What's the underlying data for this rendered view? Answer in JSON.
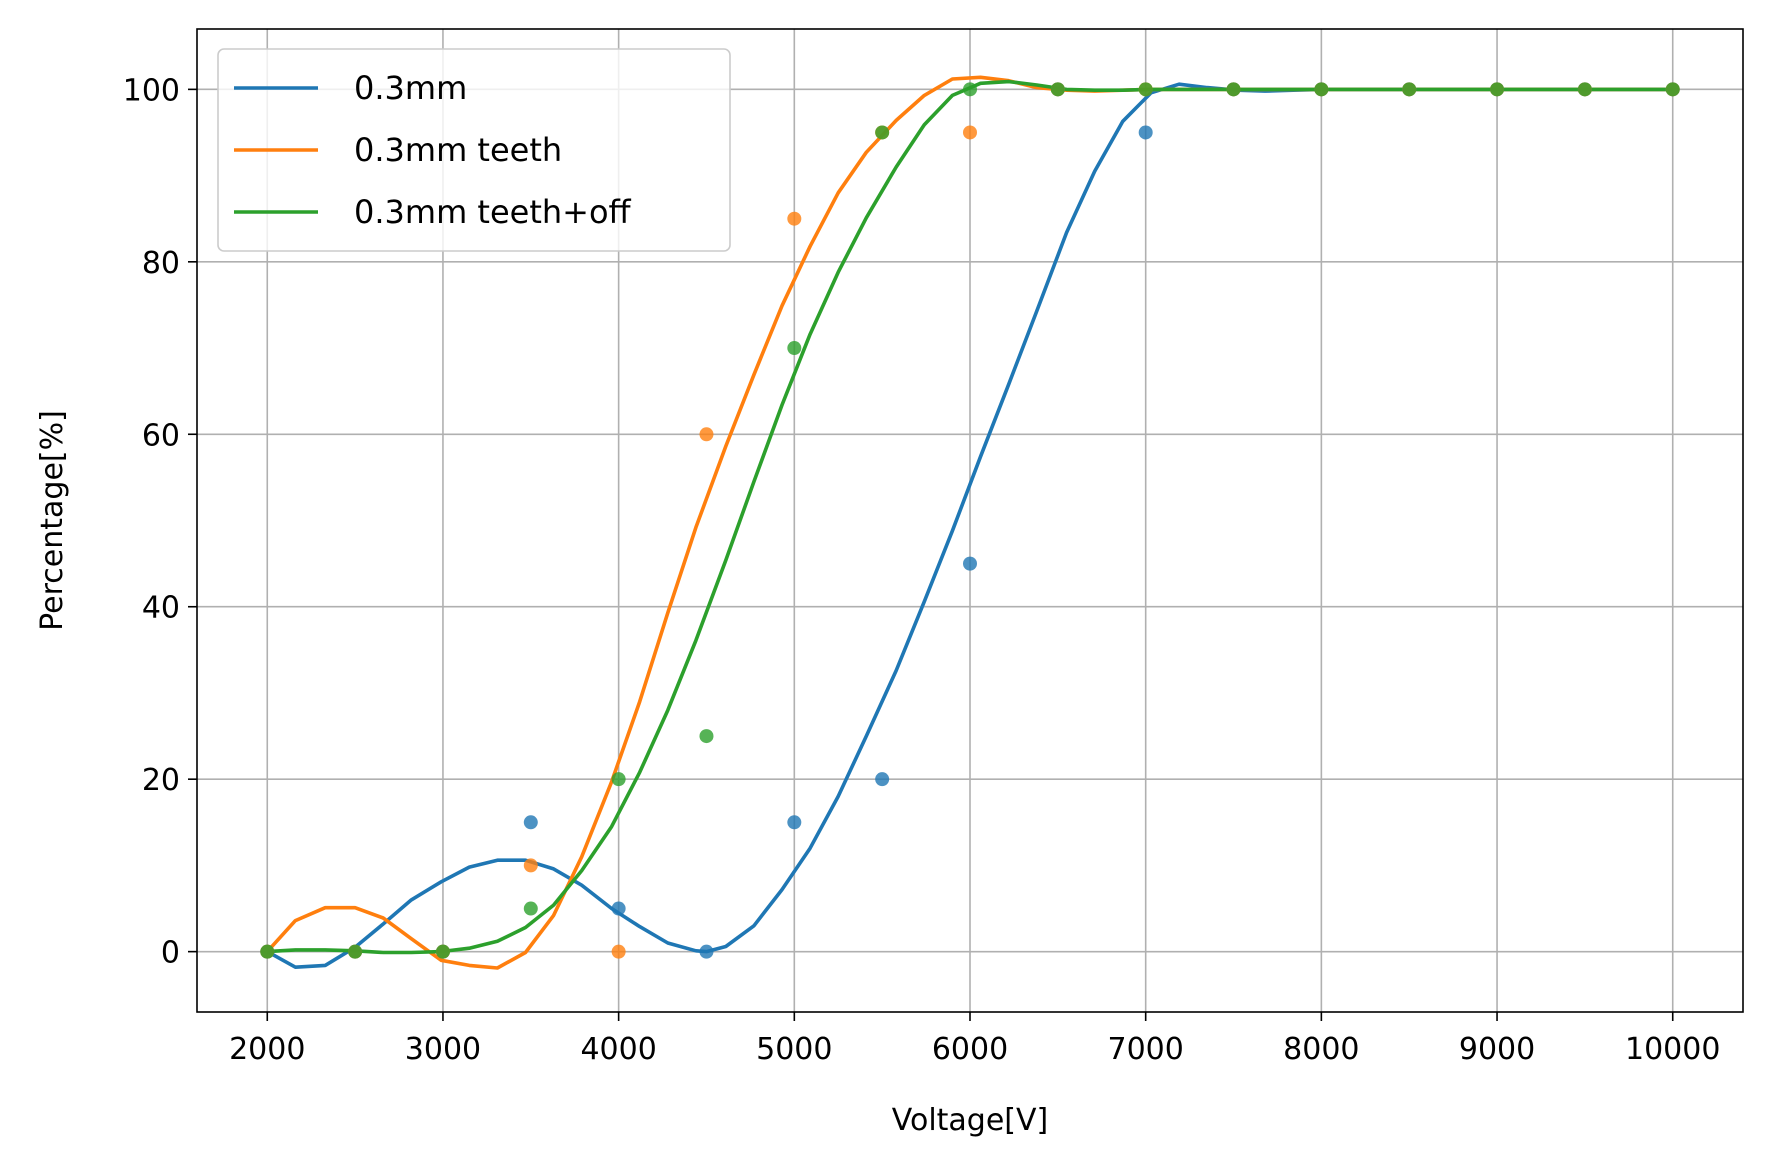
{
  "chart_data": {
    "type": "line",
    "title": "",
    "xlabel": "Voltage[V]",
    "ylabel": "Percentage[%]",
    "xlim": [
      1600,
      10400
    ],
    "ylim": [
      -7,
      107
    ],
    "xticks": [
      2000,
      3000,
      4000,
      5000,
      6000,
      7000,
      8000,
      9000,
      10000
    ],
    "yticks": [
      0,
      20,
      40,
      60,
      80,
      100
    ],
    "xtick_labels": [
      "2000",
      "3000",
      "4000",
      "5000",
      "6000",
      "7000",
      "8000",
      "9000",
      "10000"
    ],
    "ytick_labels": [
      "0",
      "20",
      "40",
      "60",
      "80",
      "100"
    ],
    "grid": true,
    "legend_position": "top-left",
    "series": [
      {
        "name": "0.3mm",
        "color": "#1f77b4",
        "points": {
          "x": [
            2000,
            2500,
            3000,
            3500,
            4000,
            4500,
            5000,
            5500,
            6000,
            6500,
            7000,
            7500,
            8000,
            8500,
            9000,
            9500,
            10000
          ],
          "y": [
            0,
            0,
            0,
            15,
            5,
            0,
            15,
            20,
            45,
            100,
            95,
            100,
            100,
            100,
            100,
            100,
            100
          ]
        },
        "curve": {
          "x": [
            2000,
            2160,
            2330,
            2500,
            2660,
            2820,
            2990,
            3150,
            3310,
            3470,
            3630,
            3790,
            3960,
            4120,
            4280,
            4440,
            4500,
            4610,
            4770,
            4930,
            5090,
            5250,
            5410,
            5580,
            5740,
            5900,
            6060,
            6220,
            6380,
            6550,
            6710,
            6870,
            7030,
            7190,
            7350,
            7520,
            7680,
            7840,
            8000,
            8160,
            8320,
            8490,
            8650,
            8810,
            8970,
            9130,
            9290,
            9460,
            9620,
            9780,
            9940,
            10000
          ],
          "y": [
            0,
            -1.8,
            -1.6,
            0.5,
            3.2,
            6,
            8.1,
            9.8,
            10.6,
            10.6,
            9.6,
            7.7,
            5,
            2.9,
            1,
            0.1,
            0,
            0.6,
            3,
            7.2,
            12,
            18,
            25,
            32.6,
            40.6,
            48.8,
            57.4,
            65.8,
            74.3,
            83.4,
            90.5,
            96.3,
            99.6,
            100.6,
            100.2,
            99.9,
            99.8,
            99.9,
            100,
            100,
            100,
            100,
            100,
            100,
            100,
            100,
            100,
            100,
            100,
            100,
            100,
            100
          ]
        }
      },
      {
        "name": "0.3mm teeth",
        "color": "#ff7f0e",
        "points": {
          "x": [
            2000,
            2500,
            3000,
            3500,
            4000,
            4500,
            5000,
            5500,
            6000,
            6500,
            7000,
            7500,
            8000,
            8500,
            9000,
            9500,
            10000
          ],
          "y": [
            0,
            0,
            0,
            10,
            0,
            60,
            85,
            95,
            95,
            100,
            100,
            100,
            100,
            100,
            100,
            100,
            100
          ]
        },
        "curve": {
          "x": [
            2000,
            2160,
            2330,
            2500,
            2660,
            2820,
            2990,
            3150,
            3310,
            3470,
            3630,
            3790,
            3960,
            4120,
            4280,
            4440,
            4610,
            4770,
            4930,
            5090,
            5250,
            5410,
            5580,
            5740,
            5900,
            6060,
            6220,
            6380,
            6550,
            6710,
            6870,
            7030,
            7190,
            7350,
            7520,
            7680,
            7840,
            8000,
            8160,
            8320,
            8490,
            8650,
            8810,
            8970,
            9130,
            9290,
            9460,
            9620,
            9780,
            9940,
            10000
          ],
          "y": [
            0,
            3.6,
            5.1,
            5.1,
            3.9,
            1.5,
            -1,
            -1.6,
            -1.9,
            -0.1,
            4.2,
            11,
            19.7,
            29,
            39.3,
            49.2,
            58.6,
            66.9,
            74.9,
            81.8,
            88,
            92.7,
            96.4,
            99.3,
            101.2,
            101.4,
            101,
            100.2,
            99.9,
            99.8,
            99.9,
            100,
            100,
            100,
            100,
            100,
            100,
            100,
            100,
            100,
            100,
            100,
            100,
            100,
            100,
            100,
            100,
            100,
            100,
            100,
            100
          ]
        }
      },
      {
        "name": "0.3mm teeth+off",
        "color": "#2ca02c",
        "points": {
          "x": [
            2000,
            2500,
            3000,
            3500,
            4000,
            4500,
            5000,
            5500,
            6000,
            6500,
            7000,
            7500,
            8000,
            8500,
            9000,
            9500,
            10000
          ],
          "y": [
            0,
            0,
            0,
            5,
            20,
            25,
            70,
            95,
            100,
            100,
            100,
            100,
            100,
            100,
            100,
            100,
            100
          ]
        },
        "curve": {
          "x": [
            2000,
            2160,
            2330,
            2500,
            2660,
            2820,
            2990,
            3150,
            3310,
            3470,
            3630,
            3790,
            3960,
            4120,
            4280,
            4440,
            4610,
            4770,
            4930,
            5090,
            5250,
            5410,
            5580,
            5740,
            5900,
            6060,
            6220,
            6380,
            6550,
            6710,
            6870,
            7030,
            7190,
            7350,
            7520,
            7680,
            7840,
            8000,
            8160,
            8320,
            8490,
            8650,
            8810,
            8970,
            9130,
            9290,
            9460,
            9620,
            9780,
            9940,
            10000
          ],
          "y": [
            0,
            0.2,
            0.2,
            0.1,
            -0.1,
            -0.1,
            0,
            0.4,
            1.2,
            2.8,
            5.4,
            9.4,
            14.5,
            20.8,
            28,
            36.1,
            45.4,
            54.5,
            63.4,
            71.6,
            78.8,
            85.1,
            91,
            95.9,
            99.3,
            100.7,
            100.9,
            100.5,
            100,
            99.9,
            99.9,
            100,
            100,
            100,
            100,
            100,
            100,
            100,
            100,
            100,
            100,
            100,
            100,
            100,
            100,
            100,
            100,
            100,
            100,
            100,
            100
          ]
        }
      }
    ]
  }
}
